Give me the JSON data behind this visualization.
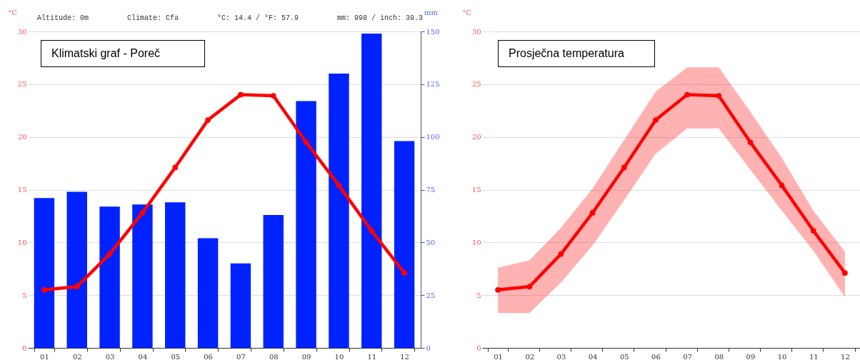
{
  "chart_data": [
    {
      "type": "bar",
      "title": "Klimatski graf - Poreč",
      "categories": [
        "01",
        "02",
        "03",
        "04",
        "05",
        "06",
        "07",
        "08",
        "09",
        "10",
        "11",
        "12"
      ],
      "series": [
        {
          "color": "#0022ff",
          "axis": "y2",
          "values": [
            71,
            74,
            67,
            68,
            69,
            52,
            40,
            63,
            117,
            130,
            149,
            98
          ]
        },
        {
          "type": "line",
          "color": "#ff0000",
          "values": [
            5.5,
            5.8,
            8.9,
            12.8,
            17.1,
            21.6,
            24.0,
            23.9,
            19.5,
            15.4,
            11.1,
            7.1
          ]
        }
      ],
      "ylabel": "°C",
      "y2label": "mm",
      "ylim": [
        0,
        30
      ],
      "yticks": [
        0,
        5,
        10,
        15,
        20,
        25,
        30
      ],
      "y2lim": [
        0,
        150
      ],
      "y2ticks": [
        0,
        25,
        50,
        75,
        100,
        125,
        150
      ],
      "annotations": [
        "Altitude: 0m",
        "Climate: Cfa",
        "°C: 14.4 / °F: 57.9",
        "mm: 998 / inch: 39.3"
      ],
      "grid": "y",
      "marker": "circle"
    },
    {
      "type": "line",
      "title": "Prosječna temperatura",
      "categories": [
        "01",
        "02",
        "03",
        "04",
        "05",
        "06",
        "07",
        "08",
        "09",
        "10",
        "11",
        "12"
      ],
      "series": [
        {
          "color": "#ff0000",
          "values": [
            5.5,
            5.8,
            8.9,
            12.8,
            17.1,
            21.6,
            24.0,
            23.9,
            19.5,
            15.4,
            11.1,
            7.1
          ],
          "lower": [
            3.3,
            3.3,
            6.2,
            9.7,
            14.0,
            18.4,
            20.8,
            20.8,
            16.9,
            13.0,
            9.2,
            4.8
          ],
          "upper": [
            7.6,
            8.3,
            11.4,
            15.1,
            19.7,
            24.3,
            26.6,
            26.6,
            22.4,
            18.0,
            13.0,
            9.1
          ]
        }
      ],
      "ylabel": "°C",
      "ylim": [
        0,
        30
      ],
      "yticks": [
        0,
        5,
        10,
        15,
        20,
        25,
        30
      ],
      "grid": "y",
      "marker": "circle"
    }
  ]
}
